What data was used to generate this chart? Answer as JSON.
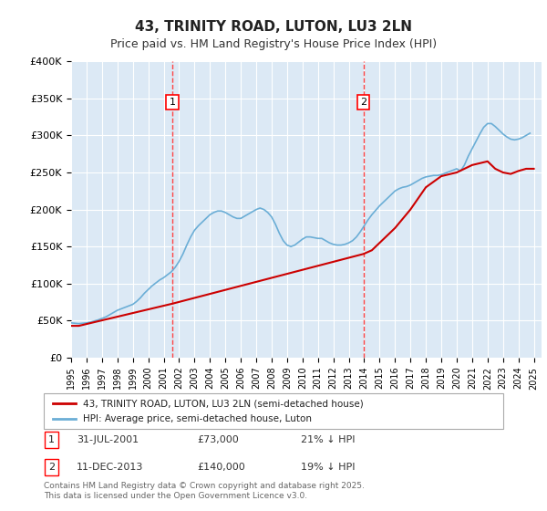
{
  "title": "43, TRINITY ROAD, LUTON, LU3 2LN",
  "subtitle": "Price paid vs. HM Land Registry's House Price Index (HPI)",
  "background_color": "#dce9f5",
  "plot_bg_color": "#dce9f5",
  "ylabel_color": "#333333",
  "ylim": [
    0,
    400000
  ],
  "yticks": [
    0,
    50000,
    100000,
    150000,
    200000,
    250000,
    300000,
    350000,
    400000
  ],
  "ytick_labels": [
    "£0",
    "£50K",
    "£100K",
    "£150K",
    "£200K",
    "£250K",
    "£300K",
    "£350K",
    "£400K"
  ],
  "hpi_color": "#6baed6",
  "price_color": "#cc0000",
  "marker1_x": 2001.58,
  "marker2_x": 2013.95,
  "marker1_price": 73000,
  "marker2_price": 140000,
  "vline_color": "#ff4444",
  "legend_label_price": "43, TRINITY ROAD, LUTON, LU3 2LN (semi-detached house)",
  "legend_label_hpi": "HPI: Average price, semi-detached house, Luton",
  "annotation1_label": "1",
  "annotation2_label": "2",
  "table_row1": [
    "1",
    "31-JUL-2001",
    "£73,000",
    "21% ↓ HPI"
  ],
  "table_row2": [
    "2",
    "11-DEC-2013",
    "£140,000",
    "19% ↓ HPI"
  ],
  "footer": "Contains HM Land Registry data © Crown copyright and database right 2025.\nThis data is licensed under the Open Government Licence v3.0.",
  "hpi_data": {
    "years": [
      1995.0,
      1995.25,
      1995.5,
      1995.75,
      1996.0,
      1996.25,
      1996.5,
      1996.75,
      1997.0,
      1997.25,
      1997.5,
      1997.75,
      1998.0,
      1998.25,
      1998.5,
      1998.75,
      1999.0,
      1999.25,
      1999.5,
      1999.75,
      2000.0,
      2000.25,
      2000.5,
      2000.75,
      2001.0,
      2001.25,
      2001.5,
      2001.75,
      2002.0,
      2002.25,
      2002.5,
      2002.75,
      2003.0,
      2003.25,
      2003.5,
      2003.75,
      2004.0,
      2004.25,
      2004.5,
      2004.75,
      2005.0,
      2005.25,
      2005.5,
      2005.75,
      2006.0,
      2006.25,
      2006.5,
      2006.75,
      2007.0,
      2007.25,
      2007.5,
      2007.75,
      2008.0,
      2008.25,
      2008.5,
      2008.75,
      2009.0,
      2009.25,
      2009.5,
      2009.75,
      2010.0,
      2010.25,
      2010.5,
      2010.75,
      2011.0,
      2011.25,
      2011.5,
      2011.75,
      2012.0,
      2012.25,
      2012.5,
      2012.75,
      2013.0,
      2013.25,
      2013.5,
      2013.75,
      2014.0,
      2014.25,
      2014.5,
      2014.75,
      2015.0,
      2015.25,
      2015.5,
      2015.75,
      2016.0,
      2016.25,
      2016.5,
      2016.75,
      2017.0,
      2017.25,
      2017.5,
      2017.75,
      2018.0,
      2018.25,
      2018.5,
      2018.75,
      2019.0,
      2019.25,
      2019.5,
      2019.75,
      2020.0,
      2020.25,
      2020.5,
      2020.75,
      2021.0,
      2021.25,
      2021.5,
      2021.75,
      2022.0,
      2022.25,
      2022.5,
      2022.75,
      2023.0,
      2023.25,
      2023.5,
      2023.75,
      2024.0,
      2024.25,
      2024.5,
      2024.75
    ],
    "values": [
      47000,
      46500,
      46000,
      46500,
      47000,
      48000,
      49500,
      51000,
      53000,
      55000,
      58000,
      61000,
      64000,
      66000,
      68000,
      70000,
      72000,
      76000,
      81000,
      87000,
      92000,
      97000,
      101000,
      105000,
      108000,
      112000,
      116000,
      122000,
      130000,
      140000,
      152000,
      163000,
      172000,
      178000,
      183000,
      188000,
      193000,
      196000,
      198000,
      198000,
      196000,
      193000,
      190000,
      188000,
      188000,
      191000,
      194000,
      197000,
      200000,
      202000,
      200000,
      196000,
      190000,
      180000,
      168000,
      158000,
      152000,
      150000,
      152000,
      156000,
      160000,
      163000,
      163000,
      162000,
      161000,
      161000,
      158000,
      155000,
      153000,
      152000,
      152000,
      153000,
      155000,
      158000,
      163000,
      170000,
      178000,
      186000,
      193000,
      199000,
      205000,
      210000,
      215000,
      220000,
      225000,
      228000,
      230000,
      231000,
      233000,
      236000,
      239000,
      242000,
      244000,
      245000,
      246000,
      246000,
      247000,
      249000,
      251000,
      253000,
      255000,
      252000,
      260000,
      272000,
      282000,
      292000,
      302000,
      311000,
      316000,
      316000,
      312000,
      307000,
      302000,
      298000,
      295000,
      294000,
      295000,
      297000,
      300000,
      303000
    ]
  },
  "price_data": {
    "years": [
      1995.5,
      2001.58,
      2013.95,
      2014.5
    ],
    "values": [
      43000,
      73000,
      140000,
      145000
    ]
  },
  "price_line_data": {
    "years": [
      1995.0,
      1995.5,
      2001.58,
      2013.95,
      2014.5,
      2016.0,
      2017.0,
      2018.0,
      2019.0,
      2020.0,
      2021.0,
      2022.0,
      2022.5,
      2023.0,
      2023.5,
      2024.0,
      2024.5,
      2025.0
    ],
    "values": [
      43000,
      43000,
      73000,
      140000,
      145000,
      175000,
      200000,
      230000,
      245000,
      250000,
      260000,
      265000,
      255000,
      250000,
      248000,
      252000,
      255000,
      255000
    ]
  }
}
